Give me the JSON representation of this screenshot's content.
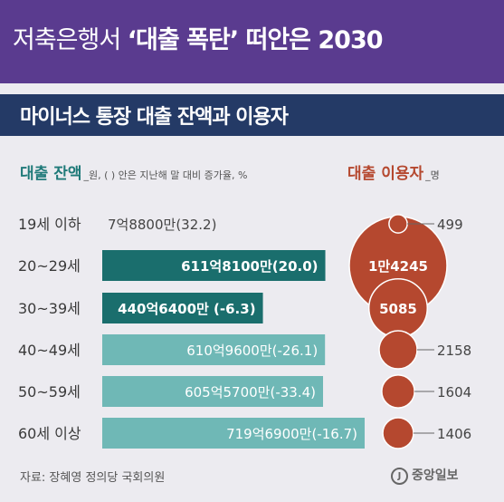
{
  "headline": {
    "part1": "저축은행서 ",
    "part2": "‘대출 폭탄’",
    "part3": " 떠안은 2030"
  },
  "subheading": "마이너스 통장 대출 잔액과 이용자",
  "left_label": {
    "title": "대출 잔액",
    "note": "_원, ( ) 안은 지난해 말 대비 증가율, %"
  },
  "right_label": {
    "title": "대출 이용자",
    "note": "_명"
  },
  "source": "자료: 장혜영 정의당 국회의원",
  "logo": {
    "mark": "J",
    "text": "중앙일보"
  },
  "chart_data": {
    "type": "bar",
    "categories": [
      "19세 이하",
      "20~29세",
      "30~39세",
      "40~49세",
      "50~59세",
      "60세 이상"
    ],
    "series": [
      {
        "name": "대출 잔액",
        "values": [
          788000000,
          61181000000,
          44064000000,
          61096000000,
          60557000000,
          71969000000
        ],
        "labels": [
          "7억8800만(32.2)",
          "611억8100만(20.0)",
          "440억6400만 (-6.3)",
          "610억9600만(-26.1)",
          "605억5700만(-33.4)",
          "719억6900만(-16.7)"
        ],
        "growth_pct": [
          32.2,
          20.0,
          -6.3,
          -26.1,
          -33.4,
          -16.7
        ]
      },
      {
        "name": "대출 이용자",
        "values": [
          499,
          14245,
          5085,
          2158,
          1604,
          1406
        ],
        "labels": [
          "499",
          "1만4245",
          "5085",
          "2158",
          "1604",
          "1406"
        ]
      }
    ],
    "colors": {
      "bar_highlight": "#1a6e6d",
      "bar_normal": "#6fb8b6",
      "bar_text": "#ffffff",
      "bubble": "#b5482f",
      "category_text": "#3a3a3a",
      "value_text": "#444444"
    }
  }
}
